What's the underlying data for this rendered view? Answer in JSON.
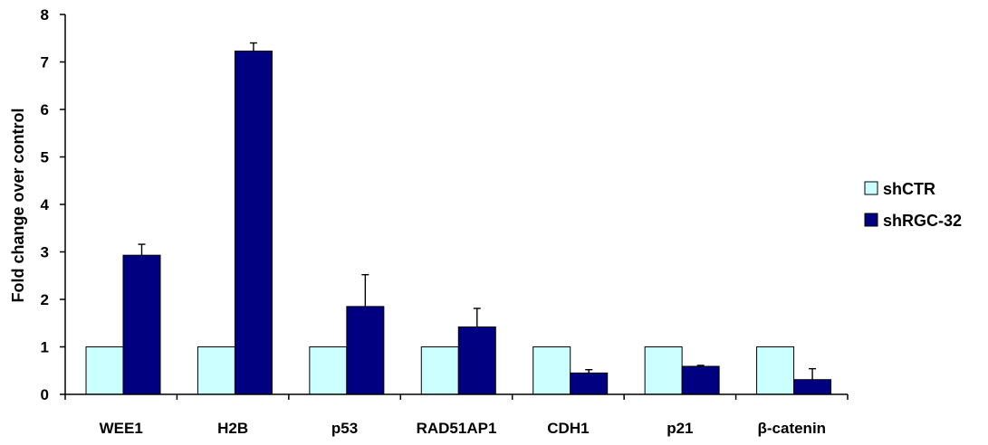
{
  "chart_data": {
    "type": "bar",
    "title": "",
    "xlabel": "",
    "ylabel": "Fold change over control",
    "ylim": [
      0,
      8
    ],
    "yticks": [
      0,
      1,
      2,
      3,
      4,
      5,
      6,
      7,
      8
    ],
    "grid": false,
    "legend_position": "right",
    "categories": [
      "WEE1",
      "H2B",
      "p53",
      "RAD51AP1",
      "CDH1",
      "p21",
      "β-catenin"
    ],
    "series": [
      {
        "name": "shCTR",
        "color": "#ccffff",
        "values": [
          1,
          1,
          1,
          1,
          1,
          1,
          1
        ]
      },
      {
        "name": "shRGC-32",
        "color": "#000080",
        "values": [
          2.93,
          7.23,
          1.85,
          1.42,
          0.45,
          0.59,
          0.31
        ],
        "errors": [
          0.23,
          0.17,
          0.67,
          0.39,
          0.07,
          0.02,
          0.23
        ]
      }
    ]
  }
}
